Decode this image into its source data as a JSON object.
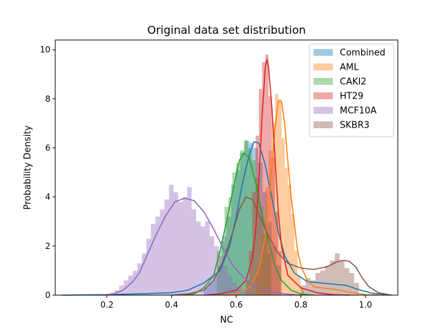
{
  "chart_data": {
    "type": "histogram+kde",
    "title": "Original data set distribution",
    "xlabel": "NC",
    "ylabel": "Probability Density",
    "xlim": [
      0.04,
      1.1
    ],
    "ylim": [
      0,
      10.4
    ],
    "xticks": [
      0.2,
      0.4,
      0.6,
      0.8,
      1.0
    ],
    "xtick_labels": [
      "0.2",
      "0.4",
      "0.6",
      "0.8",
      "1.0"
    ],
    "yticks": [
      0,
      2,
      4,
      6,
      8,
      10
    ],
    "ytick_labels": [
      "0",
      "2",
      "4",
      "6",
      "8",
      "10"
    ],
    "grid": false,
    "legend_position": "upper right",
    "series": [
      {
        "name": "Combined",
        "color": "#1f77b4",
        "kde": [
          [
            0.06,
            0.0
          ],
          [
            0.2,
            0.02
          ],
          [
            0.3,
            0.05
          ],
          [
            0.4,
            0.1
          ],
          [
            0.45,
            0.2
          ],
          [
            0.5,
            0.5
          ],
          [
            0.55,
            1.0
          ],
          [
            0.58,
            2.0
          ],
          [
            0.6,
            3.2
          ],
          [
            0.62,
            4.6
          ],
          [
            0.64,
            5.7
          ],
          [
            0.655,
            6.25
          ],
          [
            0.67,
            6.2
          ],
          [
            0.69,
            5.3
          ],
          [
            0.71,
            4.0
          ],
          [
            0.73,
            2.6
          ],
          [
            0.75,
            1.6
          ],
          [
            0.78,
            0.9
          ],
          [
            0.82,
            0.55
          ],
          [
            0.86,
            0.5
          ],
          [
            0.9,
            0.45
          ],
          [
            0.94,
            0.4
          ],
          [
            0.98,
            0.22
          ],
          [
            1.02,
            0.08
          ],
          [
            1.08,
            0.0
          ]
        ],
        "bins": {
          "start": 0.5,
          "width": 0.014,
          "heights": [
            0.3,
            0.5,
            0.8,
            1.2,
            2.4,
            3.2,
            4.5,
            5.1,
            5.8,
            6.3,
            6.2,
            6.0,
            5.4,
            4.2,
            3.0,
            2.0,
            1.2
          ]
        }
      },
      {
        "name": "AML",
        "color": "#ff7f0e",
        "kde": [
          [
            0.56,
            0.0
          ],
          [
            0.6,
            0.05
          ],
          [
            0.64,
            0.3
          ],
          [
            0.67,
            1.0
          ],
          [
            0.69,
            2.4
          ],
          [
            0.7,
            3.5
          ],
          [
            0.71,
            5.2
          ],
          [
            0.72,
            6.8
          ],
          [
            0.73,
            7.9
          ],
          [
            0.74,
            7.9
          ],
          [
            0.75,
            7.0
          ],
          [
            0.76,
            5.4
          ],
          [
            0.77,
            4.0
          ],
          [
            0.78,
            2.9
          ],
          [
            0.79,
            1.8
          ],
          [
            0.8,
            1.2
          ],
          [
            0.82,
            0.6
          ],
          [
            0.84,
            0.35
          ],
          [
            0.86,
            0.3
          ],
          [
            0.9,
            0.25
          ],
          [
            0.95,
            0.12
          ],
          [
            1.0,
            0.02
          ],
          [
            1.04,
            0.0
          ]
        ],
        "bins": {
          "start": 0.66,
          "width": 0.01,
          "heights": [
            0.8,
            1.3,
            2.5,
            4.4,
            5.9,
            7.0,
            8.2,
            8.0,
            6.4,
            5.2,
            4.5,
            3.3,
            1.8,
            0.8,
            0.3
          ]
        }
      },
      {
        "name": "CAKI2",
        "color": "#2ca02c",
        "kde": [
          [
            0.44,
            0.0
          ],
          [
            0.47,
            0.05
          ],
          [
            0.5,
            0.3
          ],
          [
            0.53,
            0.8
          ],
          [
            0.55,
            1.8
          ],
          [
            0.57,
            3.0
          ],
          [
            0.59,
            4.3
          ],
          [
            0.61,
            5.5
          ],
          [
            0.625,
            5.8
          ],
          [
            0.64,
            5.6
          ],
          [
            0.66,
            4.6
          ],
          [
            0.68,
            3.3
          ],
          [
            0.7,
            2.2
          ],
          [
            0.72,
            1.2
          ],
          [
            0.74,
            0.6
          ],
          [
            0.77,
            0.2
          ],
          [
            0.8,
            0.05
          ],
          [
            0.84,
            0.0
          ]
        ],
        "bins": {
          "start": 0.54,
          "width": 0.012,
          "heights": [
            1.8,
            2.2,
            3.6,
            4.0,
            5.0,
            5.4,
            5.9,
            6.3,
            6.0,
            5.5,
            4.8,
            3.6,
            2.5,
            1.7
          ]
        }
      },
      {
        "name": "HT29",
        "color": "#d62728",
        "kde": [
          [
            0.5,
            0.0
          ],
          [
            0.55,
            0.05
          ],
          [
            0.6,
            0.2
          ],
          [
            0.63,
            0.6
          ],
          [
            0.65,
            1.5
          ],
          [
            0.66,
            2.6
          ],
          [
            0.67,
            4.6
          ],
          [
            0.68,
            7.3
          ],
          [
            0.69,
            9.3
          ],
          [
            0.695,
            9.6
          ],
          [
            0.7,
            9.3
          ],
          [
            0.71,
            7.7
          ],
          [
            0.72,
            5.6
          ],
          [
            0.73,
            3.4
          ],
          [
            0.74,
            2.0
          ],
          [
            0.76,
            0.8
          ],
          [
            0.8,
            0.3
          ],
          [
            0.85,
            0.1
          ],
          [
            0.9,
            0.02
          ],
          [
            0.95,
            0.0
          ]
        ],
        "bins": {
          "start": 0.63,
          "width": 0.01,
          "heights": [
            0.6,
            1.8,
            4.2,
            6.5,
            8.4,
            9.5,
            9.8,
            8.1,
            5.6,
            3.4,
            1.8
          ]
        }
      },
      {
        "name": "MCF10A",
        "color": "#9467bd",
        "kde": [
          [
            0.18,
            0.0
          ],
          [
            0.22,
            0.05
          ],
          [
            0.25,
            0.2
          ],
          [
            0.28,
            0.55
          ],
          [
            0.3,
            0.9
          ],
          [
            0.32,
            1.5
          ],
          [
            0.35,
            2.4
          ],
          [
            0.38,
            3.2
          ],
          [
            0.41,
            3.8
          ],
          [
            0.44,
            3.95
          ],
          [
            0.47,
            3.85
          ],
          [
            0.5,
            3.4
          ],
          [
            0.53,
            2.7
          ],
          [
            0.56,
            1.9
          ],
          [
            0.59,
            1.2
          ],
          [
            0.62,
            0.75
          ],
          [
            0.65,
            0.4
          ],
          [
            0.7,
            0.15
          ],
          [
            0.75,
            0.05
          ],
          [
            0.8,
            0.0
          ]
        ],
        "bins": {
          "start": 0.21,
          "width": 0.014,
          "heights": [
            0.1,
            0.2,
            0.4,
            0.6,
            0.8,
            1.0,
            1.3,
            1.7,
            2.3,
            2.9,
            3.2,
            3.5,
            3.9,
            4.5,
            4.2,
            3.8,
            4.0,
            4.4,
            3.5,
            3.0,
            2.8,
            3.0,
            2.4,
            2.0,
            1.6,
            1.2,
            0.8,
            0.5,
            0.3,
            0.2
          ]
        }
      },
      {
        "name": "SKBR3",
        "color": "#8c564b",
        "kde": [
          [
            0.4,
            0.0
          ],
          [
            0.45,
            0.05
          ],
          [
            0.5,
            0.2
          ],
          [
            0.53,
            0.6
          ],
          [
            0.56,
            1.4
          ],
          [
            0.59,
            2.6
          ],
          [
            0.61,
            3.5
          ],
          [
            0.63,
            4.0
          ],
          [
            0.65,
            3.9
          ],
          [
            0.67,
            3.3
          ],
          [
            0.7,
            2.4
          ],
          [
            0.73,
            1.7
          ],
          [
            0.76,
            1.3
          ],
          [
            0.8,
            1.1
          ],
          [
            0.84,
            1.05
          ],
          [
            0.88,
            1.15
          ],
          [
            0.91,
            1.35
          ],
          [
            0.93,
            1.42
          ],
          [
            0.95,
            1.38
          ],
          [
            0.97,
            1.15
          ],
          [
            0.99,
            0.7
          ],
          [
            1.01,
            0.35
          ],
          [
            1.04,
            0.1
          ],
          [
            1.08,
            0.0
          ]
        ],
        "bins": {
          "start": 0.8,
          "width": 0.015,
          "heights": [
            0.4,
            0.7,
            0.6,
            0.9,
            1.0,
            1.2,
            1.4,
            1.7,
            1.4,
            1.1,
            0.9,
            0.5
          ]
        }
      }
    ]
  }
}
